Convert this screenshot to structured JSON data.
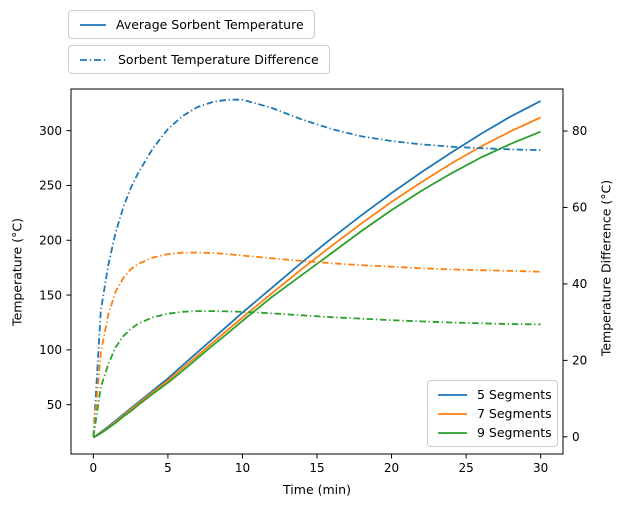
{
  "figure": {
    "background": "#ffffff",
    "xlabel": "Time (min)",
    "ylabel_left": "Temperature (°C)",
    "ylabel_right": "Temperature Difference (°C)",
    "legends": {
      "top": [
        {
          "label": "Average Sorbent Temperature",
          "style": "solid",
          "color": "#1f77b4"
        },
        {
          "label": "Sorbent Temperature Difference",
          "style": "dashdot",
          "color": "#1f77b4"
        }
      ],
      "segments": [
        {
          "label": "5 Segments",
          "color": "#1f77b4"
        },
        {
          "label": "7 Segments",
          "color": "#ff7f0e"
        },
        {
          "label": "9 Segments",
          "color": "#2ca02c"
        }
      ]
    }
  },
  "chart_data": {
    "type": "line",
    "title": "",
    "xlabel": "Time (min)",
    "ylabel": "Temperature (°C)",
    "ylabel_right": "Temperature Difference (°C)",
    "grid": false,
    "x_ticks": [
      0,
      5,
      10,
      15,
      20,
      25,
      30
    ],
    "y_ticks_left": [
      50,
      100,
      150,
      200,
      250,
      300
    ],
    "y_ticks_right": [
      0,
      20,
      40,
      60,
      80
    ],
    "xlim": [
      -1.5,
      31.5
    ],
    "ylim_left": [
      5,
      338
    ],
    "ylim_right": [
      -4.5,
      91
    ],
    "x": [
      0,
      0.5,
      1,
      1.5,
      2,
      2.5,
      3,
      4,
      5,
      6,
      7,
      8,
      9,
      10,
      12,
      14,
      16,
      18,
      20,
      22,
      24,
      26,
      28,
      30
    ],
    "series": [
      {
        "name": "5 Segments - Average Sorbent Temperature",
        "axis": "left",
        "style": "solid",
        "color": "#1f77b4",
        "values": [
          20,
          25,
          30,
          35.5,
          41,
          46.5,
          52,
          63,
          74,
          86,
          98,
          110,
          122,
          134,
          157,
          180,
          202,
          223,
          243,
          262,
          280,
          297,
          313,
          327
        ]
      },
      {
        "name": "7 Segments - Average Sorbent Temperature",
        "axis": "left",
        "style": "solid",
        "color": "#ff7f0e",
        "values": [
          20,
          24.5,
          29,
          34.5,
          40,
          45.5,
          51,
          61.5,
          72,
          83.5,
          95,
          106.5,
          118,
          129.5,
          152,
          174,
          195,
          215.5,
          235,
          253,
          270,
          285.5,
          299.5,
          312
        ]
      },
      {
        "name": "9 Segments - Average Sorbent Temperature",
        "axis": "left",
        "style": "solid",
        "color": "#2ca02c",
        "values": [
          20,
          24,
          28.5,
          33.5,
          39,
          44,
          49.5,
          60,
          70,
          81,
          92.5,
          104,
          115,
          126.5,
          148.5,
          168.5,
          188.5,
          208.5,
          227.5,
          245,
          261,
          275.5,
          288,
          299
        ]
      },
      {
        "name": "5 Segments - Sorbent Temperature Difference",
        "axis": "right",
        "style": "dashdot",
        "color": "#1f77b4",
        "values": [
          0,
          33,
          45,
          53.5,
          60,
          65,
          69,
          75.5,
          80.5,
          84,
          86.3,
          87.6,
          88.2,
          88.2,
          86,
          83,
          80.5,
          78.6,
          77.4,
          76.5,
          75.9,
          75.5,
          75.2,
          75
        ]
      },
      {
        "name": "7 Segments - Sorbent Temperature Difference",
        "axis": "right",
        "style": "dashdot",
        "color": "#ff7f0e",
        "values": [
          0,
          22,
          32,
          38,
          41.5,
          43.8,
          45.2,
          46.9,
          47.8,
          48.2,
          48.2,
          48.1,
          47.8,
          47.4,
          46.7,
          46,
          45.4,
          44.9,
          44.5,
          44.1,
          43.8,
          43.6,
          43.4,
          43.2
        ]
      },
      {
        "name": "9 Segments - Sorbent Temperature Difference",
        "axis": "right",
        "style": "dashdot",
        "color": "#2ca02c",
        "values": [
          0,
          13,
          19,
          23.5,
          26.3,
          28.2,
          29.6,
          31.3,
          32.2,
          32.7,
          32.9,
          32.9,
          32.8,
          32.7,
          32.3,
          31.8,
          31.3,
          30.9,
          30.5,
          30.2,
          29.9,
          29.7,
          29.5,
          29.4
        ]
      }
    ]
  }
}
